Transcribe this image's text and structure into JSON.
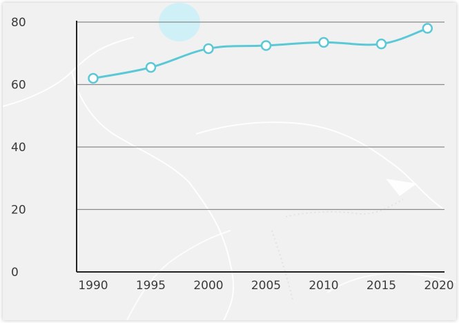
{
  "chart_data": {
    "type": "line",
    "title": "",
    "xlabel": "",
    "ylabel": "",
    "x": [
      1990,
      1995,
      2000,
      2005,
      2010,
      2015,
      2019
    ],
    "series": [
      {
        "values": [
          62,
          65.5,
          71.5,
          72.5,
          73.5,
          73,
          78
        ],
        "color": "#5bc8d6"
      }
    ],
    "xticks": [
      "1990",
      "1995",
      "2000",
      "2005",
      "2010",
      "2015",
      "2020"
    ],
    "yticks": [
      "0",
      "20",
      "40",
      "60",
      "80"
    ],
    "xlim": [
      1990,
      2020
    ],
    "ylim": [
      0,
      80
    ],
    "grid": "horizontal",
    "legend": "none",
    "colors": {
      "background": "#f1f1f1",
      "gridline": "#8a8a8a",
      "axis": "#222222",
      "map_lines": "#ffffff",
      "highlight": "#c8f0fa"
    }
  }
}
